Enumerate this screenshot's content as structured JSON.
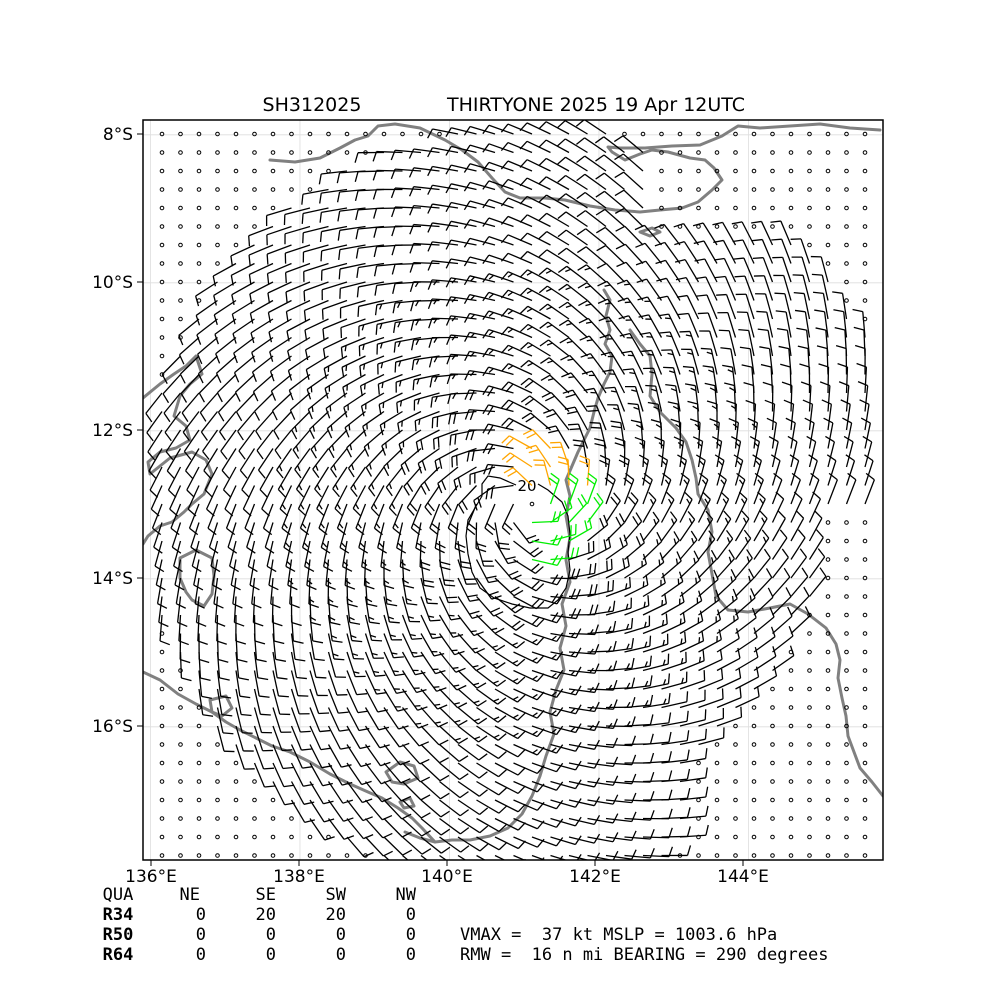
{
  "title": {
    "storm_id": "SH312025",
    "storm_name_time": "THIRTYONE 2025 19 Apr 12UTC"
  },
  "map": {
    "lon_range": [
      135.9,
      145.8
    ],
    "lat_range": [
      -17.8,
      -7.8
    ],
    "x_ticks": [
      "136°E",
      "138°E",
      "140°E",
      "142°E",
      "144°E"
    ],
    "y_ticks": [
      "8°S",
      "10°S",
      "12°S",
      "14°S",
      "16°S"
    ],
    "grid": true,
    "coastline_color": "#808080",
    "contour_label": "20",
    "storm_center": {
      "lon": 141.0,
      "lat": -13.0
    },
    "barb_colors": {
      "normal": "#000000",
      "above_20kt": "#ffa500",
      "above_34kt": "#00ee00"
    }
  },
  "wind_radii_table": {
    "header": [
      "QUA",
      "NE",
      "SE",
      "SW",
      "NW"
    ],
    "rows": [
      [
        "R34",
        "0",
        "20",
        "20",
        "0"
      ],
      [
        "R50",
        "0",
        "0",
        "0",
        "0"
      ],
      [
        "R64",
        "0",
        "0",
        "0",
        "0"
      ]
    ]
  },
  "summary": {
    "line1": "VMAX =  37 kt MSLP = 1003.6 hPa",
    "line2": "RMW =  16 n mi BEARING = 290 degrees"
  }
}
